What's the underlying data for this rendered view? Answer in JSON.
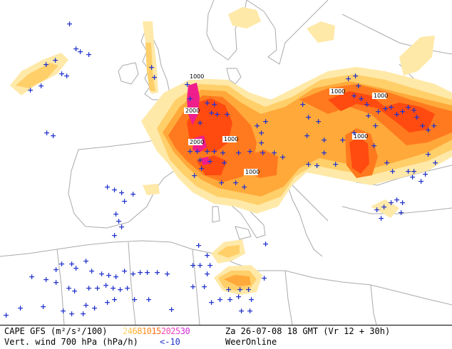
{
  "map": {
    "colors": {
      "sea": "#ffffff",
      "border": "#aaaaaa",
      "cape_1": "#ffe9a8",
      "cape_2": "#ffcf6a",
      "cape_3": "#ffa93a",
      "cape_4": "#ff7a1e",
      "cape_5": "#ff4a10",
      "cape_6": "#f01e8a",
      "vertical_wind_marker": "#2233cc"
    },
    "contour_labels": [
      "1000",
      "2000",
      "2000",
      "1000",
      "1000",
      "1000",
      "1000",
      "1000"
    ],
    "marker_symbol": "+"
  },
  "footer": {
    "title": "CAPE GFS (m²/s²/100)",
    "subtitle": "Vert. wind 700 hPa (hPa/h)",
    "scale": [
      {
        "text": "2",
        "color": "#ffd36a"
      },
      {
        "text": "4",
        "color": "#ffc24a"
      },
      {
        "text": "6",
        "color": "#ffb030"
      },
      {
        "text": "8",
        "color": "#ff9d24"
      },
      {
        "text": "10",
        "color": "#ff8a1a"
      },
      {
        "text": "15",
        "color": "#ff6a14"
      },
      {
        "text": "20",
        "color": "#f24ab0"
      },
      {
        "text": "25",
        "color": "#e040c8"
      },
      {
        "text": "30",
        "color": "#d02ad8"
      }
    ],
    "vw_threshold": "<-10",
    "date": "Za 26-07-08 18 GMT (Vr 12 + 30h)",
    "source": "WeerOnline"
  }
}
